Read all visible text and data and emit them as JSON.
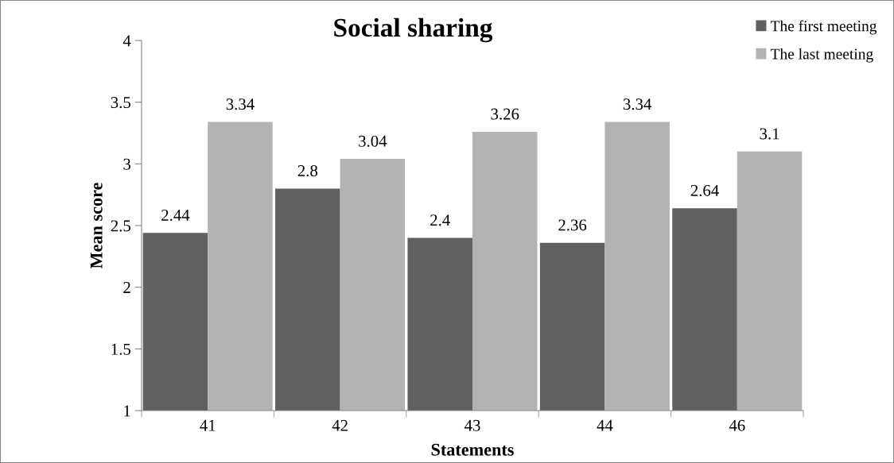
{
  "chart_data": {
    "type": "bar",
    "title": "Social sharing",
    "xlabel": "Statements",
    "ylabel": "Mean score",
    "categories": [
      "41",
      "42",
      "43",
      "44",
      "46"
    ],
    "series": [
      {
        "name": "The first meeting",
        "color": "#606060",
        "values": [
          2.44,
          2.8,
          2.4,
          2.36,
          2.64
        ]
      },
      {
        "name": "The last meeting",
        "color": "#b3b3b3",
        "values": [
          3.34,
          3.04,
          3.26,
          3.34,
          3.1
        ]
      }
    ],
    "ylim": [
      1,
      4
    ],
    "yticks": [
      1,
      1.5,
      2,
      2.5,
      3,
      3.5,
      4
    ],
    "grid": false,
    "legend": "top right",
    "data_labels": true
  }
}
